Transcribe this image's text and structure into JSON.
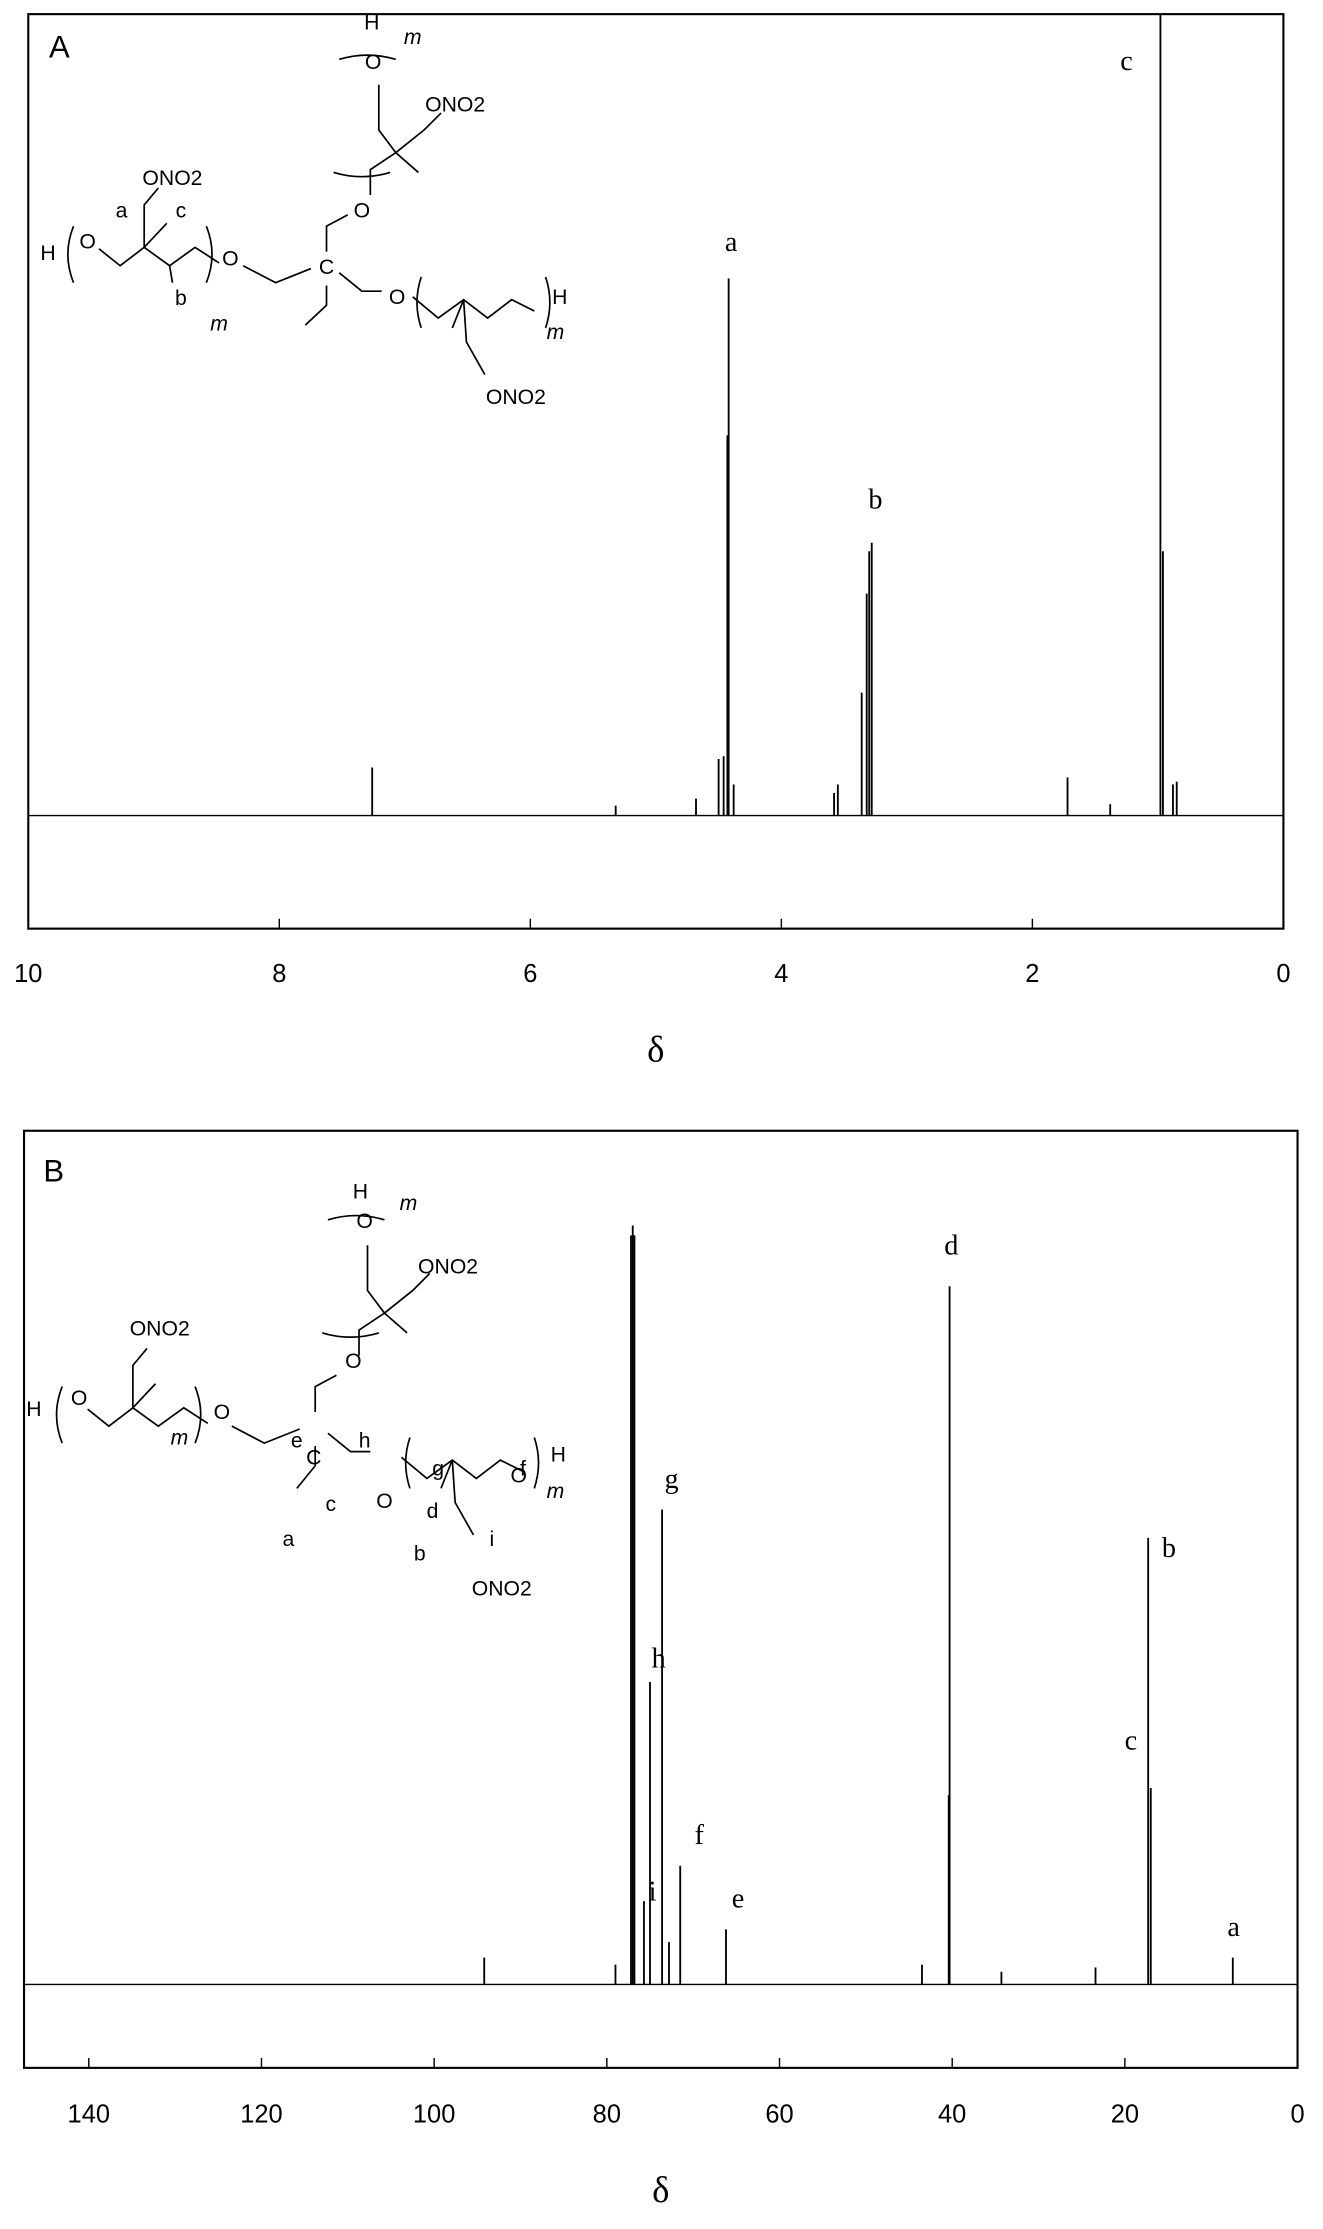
{
  "chart_data": [
    {
      "type": "spectrum",
      "panel_label": "A",
      "xlabel": "δ",
      "xlim": [
        10,
        0
      ],
      "ylim": [
        -80,
        567
      ],
      "xticks": [
        10,
        8,
        6,
        4,
        2,
        0
      ],
      "peaks": {
        "x": [
          7.26,
          5.32,
          4.68,
          4.5,
          4.46,
          4.43,
          4.42,
          4.38,
          3.58,
          3.55,
          3.36,
          3.32,
          3.3,
          3.28,
          1.72,
          1.38,
          0.98,
          0.96,
          0.88,
          0.85
        ],
        "values": [
          34,
          7,
          12,
          40,
          42,
          269,
          380,
          22,
          16,
          22,
          87,
          157,
          187,
          193,
          27,
          8,
          567,
          187,
          22,
          24
        ]
      },
      "annotations": [
        {
          "text": "a",
          "x": 4.4,
          "y": 404
        },
        {
          "text": "b",
          "x": 3.25,
          "y": 222
        },
        {
          "text": "c",
          "x": 1.25,
          "y": 532
        }
      ],
      "structure_labels": [
        "H",
        "m",
        "O",
        "ONO2",
        "O",
        "ONO2",
        "a",
        "c",
        "H",
        "O",
        "b",
        "m",
        "O",
        "C",
        "O",
        "H",
        "m",
        "ONO2"
      ]
    },
    {
      "type": "spectrum",
      "panel_label": "B",
      "xlabel": "δ",
      "xlim": [
        147.5,
        0
      ],
      "ylim": [
        -59,
        604
      ],
      "xticks": [
        140,
        120,
        100,
        80,
        60,
        40,
        20,
        0
      ],
      "peaks": {
        "x": [
          94.2,
          79.0,
          77.2,
          77.0,
          76.8,
          75.7,
          75.0,
          73.6,
          72.8,
          71.5,
          66.2,
          43.5,
          40.4,
          40.3,
          34.3,
          23.4,
          17.3,
          17.0,
          7.5
        ],
        "values": [
          19,
          14,
          530,
          537,
          530,
          59,
          214,
          336,
          30,
          84,
          39,
          14,
          134,
          494,
          9,
          12,
          316,
          139,
          19
        ]
      },
      "annotations": [
        {
          "text": "d",
          "x": 40.1,
          "y": 521
        },
        {
          "text": "g",
          "x": 72.5,
          "y": 356
        },
        {
          "text": "h",
          "x": 74.0,
          "y": 229
        },
        {
          "text": "f",
          "x": 69.3,
          "y": 104
        },
        {
          "text": "i",
          "x": 74.7,
          "y": 64
        },
        {
          "text": "e",
          "x": 64.8,
          "y": 59
        },
        {
          "text": "b",
          "x": 14.9,
          "y": 307
        },
        {
          "text": "c",
          "x": 19.3,
          "y": 171
        },
        {
          "text": "a",
          "x": 7.4,
          "y": 39
        }
      ],
      "structure_labels": [
        "H",
        "m",
        "O",
        "ONO2",
        "O",
        "ONO2",
        "H",
        "O",
        "m",
        "O",
        "e",
        "C",
        "h",
        "O",
        "g",
        "f",
        "O",
        "H",
        "m",
        "c",
        "a",
        "d",
        "b",
        "i",
        "ONO2"
      ]
    }
  ]
}
